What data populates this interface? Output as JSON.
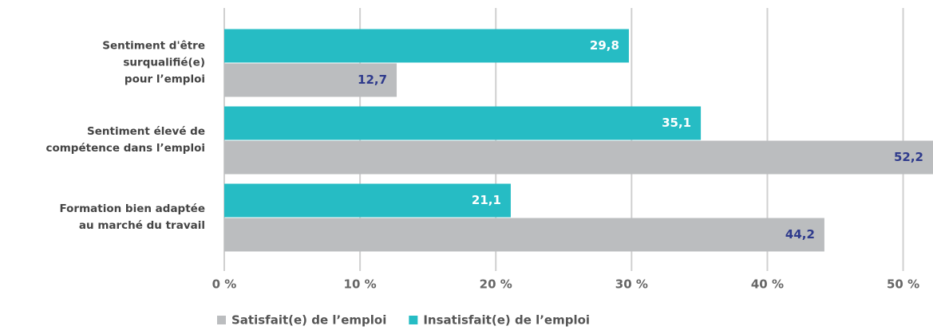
{
  "chart_data": {
    "type": "barh",
    "categories": [
      "Sentiment d'être\nsurqualifié(e)\npour l’emploi",
      "Sentiment élevé de\ncompétence dans l’emploi",
      "Formation bien adaptée\nau marché du travail"
    ],
    "series": [
      {
        "name": "Satisfait(e) de l’emploi",
        "color": "#bbbdbf",
        "label_color": "#2e3a8c",
        "values": [
          12.7,
          52.2,
          44.2
        ],
        "value_labels": [
          "12,7",
          "52,2",
          "44,2"
        ]
      },
      {
        "name": "Insatisfait(e) de l’emploi",
        "color": "#26bcc4",
        "label_color": "#ffffff",
        "values": [
          29.8,
          35.1,
          21.1
        ],
        "value_labels": [
          "29,8",
          "35,1",
          "21,1"
        ]
      }
    ],
    "xlim": [
      0,
      52.2
    ],
    "xticks": [
      {
        "value": 0,
        "label": "0 %"
      },
      {
        "value": 10,
        "label": "10 %"
      },
      {
        "value": 20,
        "label": "20 %"
      },
      {
        "value": 30,
        "label": "30 %"
      },
      {
        "value": 40,
        "label": "40 %"
      },
      {
        "value": 50,
        "label": "50 %"
      }
    ],
    "grid": true
  }
}
